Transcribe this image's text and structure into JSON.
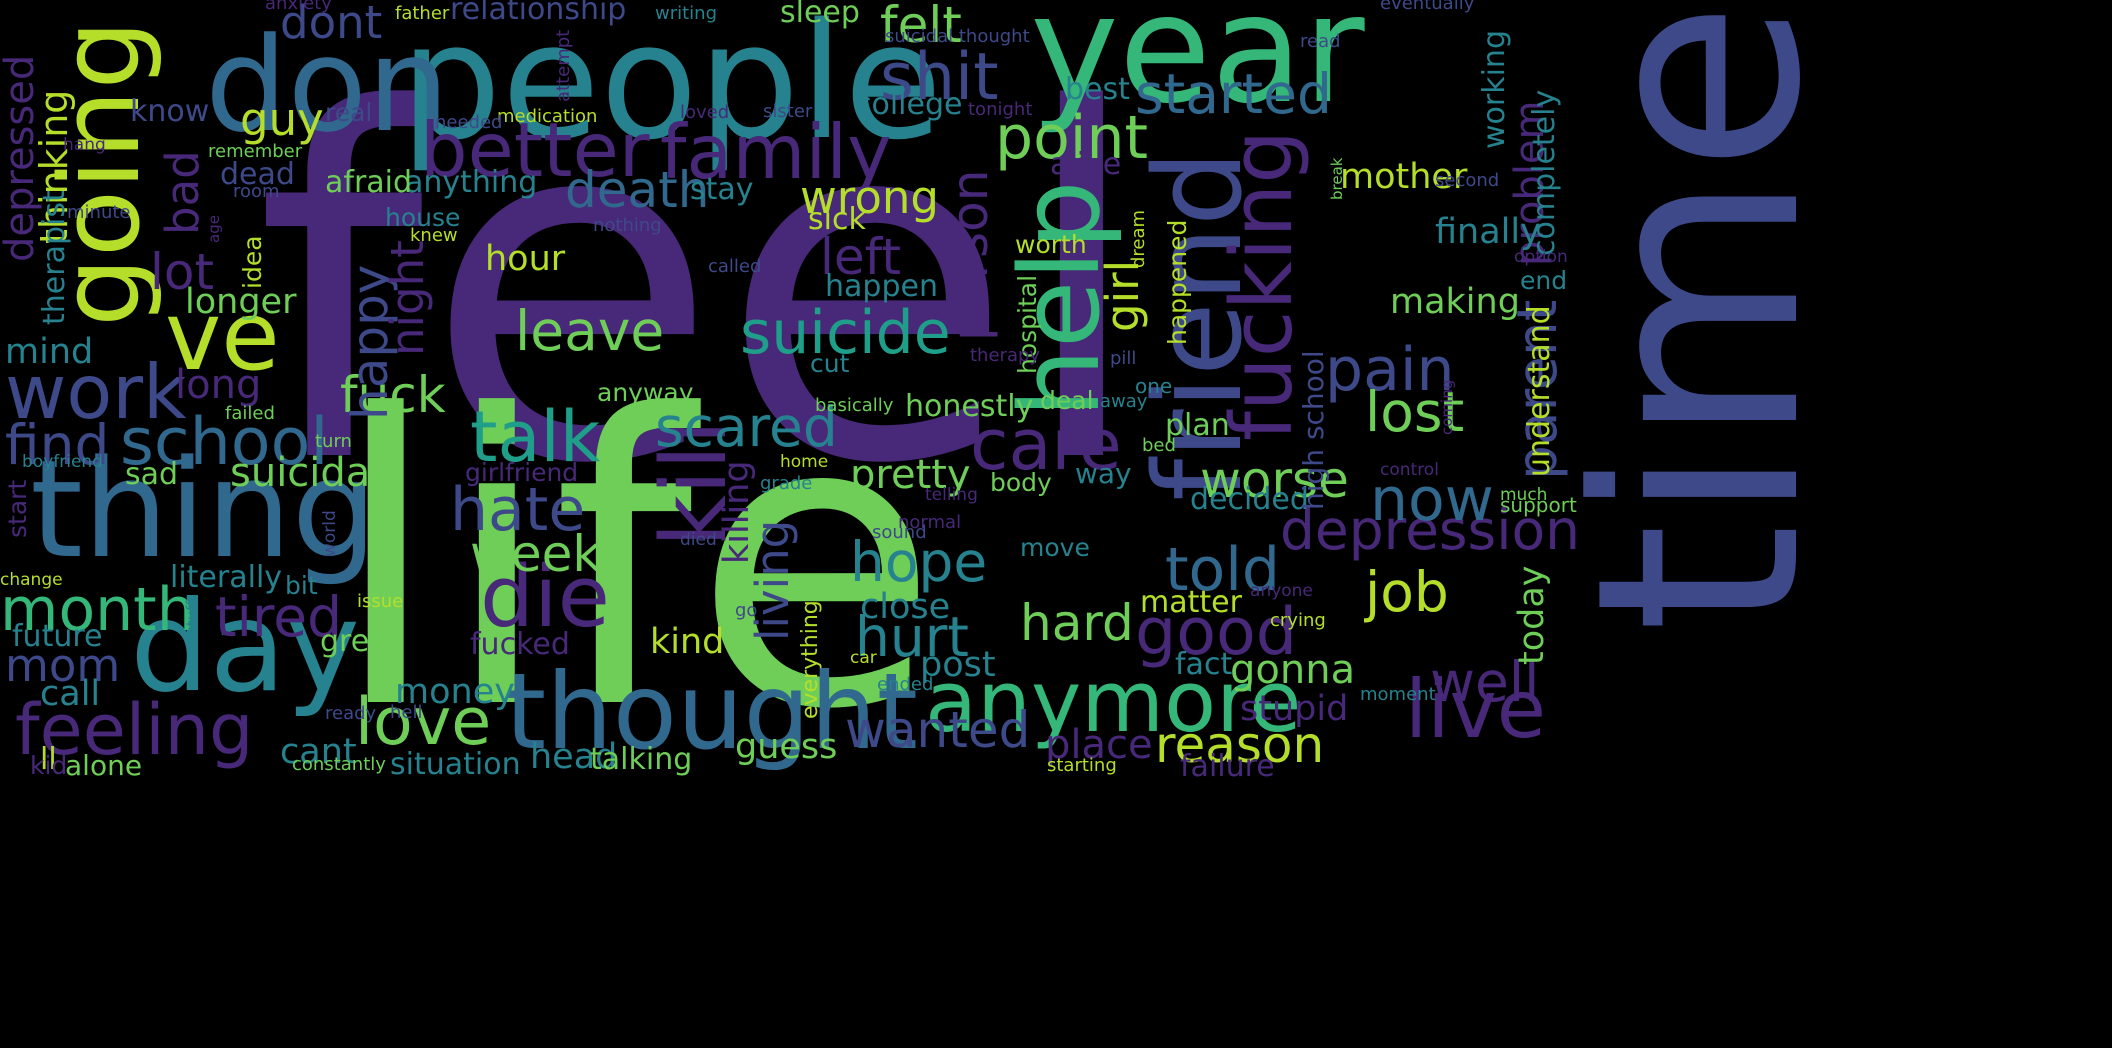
{
  "palette": {
    "background": "#000000",
    "colors": [
      "#440154",
      "#482878",
      "#3e4989",
      "#31688e",
      "#26828e",
      "#1f9e89",
      "#35b779",
      "#6ece58",
      "#b5de2b",
      "#fde725"
    ]
  },
  "words": [
    {
      "text": "feel",
      "color": "#482878"
    },
    {
      "text": "life",
      "color": "#6ece58"
    },
    {
      "text": "time",
      "color": "#3e4989"
    },
    {
      "text": "people",
      "color": "#26828e"
    },
    {
      "text": "year",
      "color": "#35b779"
    },
    {
      "text": "don",
      "color": "#31688e"
    },
    {
      "text": "thing",
      "color": "#31688e"
    },
    {
      "text": "day",
      "color": "#26828e"
    },
    {
      "text": "friend",
      "color": "#3e4989"
    },
    {
      "text": "going",
      "color": "#b5de2b"
    },
    {
      "text": "help",
      "color": "#35b779"
    },
    {
      "text": "thought",
      "color": "#31688e"
    },
    {
      "text": "ve",
      "color": "#b5de2b"
    },
    {
      "text": "fucking",
      "color": "#482878"
    },
    {
      "text": "kill",
      "color": "#482878"
    },
    {
      "text": "die",
      "color": "#482878"
    },
    {
      "text": "anymore",
      "color": "#35b779"
    },
    {
      "text": "live",
      "color": "#482878"
    },
    {
      "text": "family",
      "color": "#482878"
    },
    {
      "text": "better",
      "color": "#482878"
    },
    {
      "text": "work",
      "color": "#3e4989"
    },
    {
      "text": "feeling",
      "color": "#482878"
    },
    {
      "text": "school",
      "color": "#31688e"
    },
    {
      "text": "talk",
      "color": "#1f9e89"
    },
    {
      "text": "care",
      "color": "#482878"
    },
    {
      "text": "suicide",
      "color": "#1f9e89"
    },
    {
      "text": "depression",
      "color": "#482878"
    },
    {
      "text": "love",
      "color": "#6ece58"
    },
    {
      "text": "good",
      "color": "#482878"
    },
    {
      "text": "shit",
      "color": "#3e4989"
    },
    {
      "text": "point",
      "color": "#6ece58"
    },
    {
      "text": "pain",
      "color": "#3e4989"
    },
    {
      "text": "parent",
      "color": "#3e4989"
    },
    {
      "text": "started",
      "color": "#31688e"
    },
    {
      "text": "hate",
      "color": "#3e4989"
    },
    {
      "text": "death",
      "color": "#31688e"
    },
    {
      "text": "scared",
      "color": "#26828e"
    },
    {
      "text": "leave",
      "color": "#6ece58"
    },
    {
      "text": "told",
      "color": "#31688e"
    },
    {
      "text": "month",
      "color": "#35b779"
    },
    {
      "text": "find",
      "color": "#3e4989"
    },
    {
      "text": "week",
      "color": "#6ece58"
    },
    {
      "text": "tired",
      "color": "#482878"
    },
    {
      "text": "hurt",
      "color": "#26828e"
    },
    {
      "text": "hope",
      "color": "#26828e"
    },
    {
      "text": "job",
      "color": "#b5de2b"
    },
    {
      "text": "now",
      "color": "#31688e"
    },
    {
      "text": "lost",
      "color": "#6ece58"
    },
    {
      "text": "worse",
      "color": "#6ece58"
    },
    {
      "text": "reason",
      "color": "#b5de2b"
    },
    {
      "text": "well",
      "color": "#482878"
    },
    {
      "text": "wanted",
      "color": "#3e4989"
    },
    {
      "text": "hard",
      "color": "#6ece58"
    },
    {
      "text": "fuck",
      "color": "#6ece58"
    },
    {
      "text": "happy",
      "color": "#3e4989"
    },
    {
      "text": "person",
      "color": "#482878"
    },
    {
      "text": "night",
      "color": "#482878"
    },
    {
      "text": "wrong",
      "color": "#b5de2b"
    },
    {
      "text": "felt",
      "color": "#6ece58"
    },
    {
      "text": "dont",
      "color": "#3e4989"
    },
    {
      "text": "left",
      "color": "#482878"
    },
    {
      "text": "lot",
      "color": "#482878"
    },
    {
      "text": "bad",
      "color": "#482878"
    },
    {
      "text": "guy",
      "color": "#b5de2b"
    },
    {
      "text": "mom",
      "color": "#3e4989"
    },
    {
      "text": "dad",
      "color": "#b5de2b"
    },
    {
      "text": "suicidal",
      "color": "#6ece58"
    },
    {
      "text": "pretty",
      "color": "#6ece58"
    },
    {
      "text": "living",
      "color": "#3e4989"
    },
    {
      "text": "killing",
      "color": "#482878"
    },
    {
      "text": "girl",
      "color": "#b5de2b"
    },
    {
      "text": "problem",
      "color": "#482878"
    },
    {
      "text": "today",
      "color": "#6ece58"
    },
    {
      "text": "understand",
      "color": "#b5de2b"
    },
    {
      "text": "completely",
      "color": "#26828e"
    },
    {
      "text": "working",
      "color": "#26828e"
    },
    {
      "text": "problem_b",
      "color": "#482878"
    },
    {
      "text": "depressed",
      "color": "#482878"
    },
    {
      "text": "thinking",
      "color": "#b5de2b"
    },
    {
      "text": "therapist",
      "color": "#26828e"
    },
    {
      "text": "long",
      "color": "#482878"
    },
    {
      "text": "longer",
      "color": "#6ece58"
    },
    {
      "text": "mind",
      "color": "#26828e"
    },
    {
      "text": "sad",
      "color": "#6ece58"
    },
    {
      "text": "cant",
      "color": "#26828e"
    },
    {
      "text": "call",
      "color": "#26828e"
    },
    {
      "text": "future",
      "color": "#26828e"
    },
    {
      "text": "literally",
      "color": "#26828e"
    },
    {
      "text": "alone",
      "color": "#6ece58"
    },
    {
      "text": "ll",
      "color": "#b5de2b"
    },
    {
      "text": "kid",
      "color": "#482878"
    },
    {
      "text": "head",
      "color": "#26828e"
    },
    {
      "text": "talking",
      "color": "#6ece58"
    },
    {
      "text": "situation",
      "color": "#26828e"
    },
    {
      "text": "guess",
      "color": "#6ece58"
    },
    {
      "text": "money",
      "color": "#26828e"
    },
    {
      "text": "great",
      "color": "#6ece58"
    },
    {
      "text": "kind",
      "color": "#b5de2b"
    },
    {
      "text": "fucked",
      "color": "#482878"
    },
    {
      "text": "close",
      "color": "#26828e"
    },
    {
      "text": "post",
      "color": "#26828e"
    },
    {
      "text": "place",
      "color": "#482878"
    },
    {
      "text": "gonna",
      "color": "#6ece58"
    },
    {
      "text": "fact",
      "color": "#26828e"
    },
    {
      "text": "stupid",
      "color": "#482878"
    },
    {
      "text": "failure",
      "color": "#482878"
    },
    {
      "text": "matter",
      "color": "#b5de2b"
    },
    {
      "text": "finally",
      "color": "#26828e"
    },
    {
      "text": "making",
      "color": "#6ece58"
    },
    {
      "text": "mother",
      "color": "#b5de2b"
    },
    {
      "text": "end",
      "color": "#26828e"
    },
    {
      "text": "plan",
      "color": "#6ece58"
    },
    {
      "text": "decided",
      "color": "#26828e"
    },
    {
      "text": "honestly",
      "color": "#6ece58"
    },
    {
      "text": "hour",
      "color": "#b5de2b"
    },
    {
      "text": "happen",
      "color": "#26828e"
    },
    {
      "text": "anything",
      "color": "#26828e"
    },
    {
      "text": "afraid",
      "color": "#6ece58"
    },
    {
      "text": "college",
      "color": "#26828e"
    },
    {
      "text": "stay",
      "color": "#26828e"
    },
    {
      "text": "sick",
      "color": "#b5de2b"
    },
    {
      "text": "alive",
      "color": "#482878"
    },
    {
      "text": "best",
      "color": "#26828e"
    },
    {
      "text": "relationship",
      "color": "#3e4989"
    },
    {
      "text": "sleep",
      "color": "#6ece58"
    },
    {
      "text": "know",
      "color": "#3e4989"
    },
    {
      "text": "real",
      "color": "#3e4989"
    },
    {
      "text": "dead",
      "color": "#3e4989"
    },
    {
      "text": "idea",
      "color": "#b5de2b"
    },
    {
      "text": "house",
      "color": "#26828e"
    },
    {
      "text": "high school",
      "color": "#3e4989"
    },
    {
      "text": "hospital",
      "color": "#6ece58"
    },
    {
      "text": "happened",
      "color": "#b5de2b"
    },
    {
      "text": "worth",
      "color": "#b5de2b"
    },
    {
      "text": "cut",
      "color": "#26828e"
    },
    {
      "text": "anyway",
      "color": "#6ece58"
    },
    {
      "text": "girlfriend",
      "color": "#482878"
    },
    {
      "text": "way",
      "color": "#26828e"
    },
    {
      "text": "body",
      "color": "#6ece58"
    },
    {
      "text": "move",
      "color": "#26828e"
    },
    {
      "text": "deal",
      "color": "#6ece58"
    },
    {
      "text": "everything",
      "color": "#b5de2b"
    },
    {
      "text": "bit",
      "color": "#26828e"
    },
    {
      "text": "change",
      "color": "#b5de2b"
    },
    {
      "text": "start",
      "color": "#482878"
    },
    {
      "text": "boyfriend",
      "color": "#26828e"
    },
    {
      "text": "failed",
      "color": "#6ece58"
    },
    {
      "text": "turn",
      "color": "#6ece58"
    },
    {
      "text": "crying",
      "color": "#b5de2b"
    },
    {
      "text": "support",
      "color": "#6ece58"
    },
    {
      "text": "much",
      "color": "#6ece58"
    },
    {
      "text": "moment",
      "color": "#26828e"
    },
    {
      "text": "anxiety",
      "color": "#482878"
    },
    {
      "text": "father",
      "color": "#b5de2b"
    },
    {
      "text": "writing",
      "color": "#26828e"
    },
    {
      "text": "eventually",
      "color": "#3e4989"
    },
    {
      "text": "suicidal thought",
      "color": "#3e4989"
    },
    {
      "text": "read",
      "color": "#3e4989"
    },
    {
      "text": "attempt",
      "color": "#482878"
    },
    {
      "text": "medication",
      "color": "#b5de2b"
    },
    {
      "text": "needed",
      "color": "#3e4989"
    },
    {
      "text": "loved",
      "color": "#482878"
    },
    {
      "text": "sister",
      "color": "#3e4989"
    },
    {
      "text": "tonight",
      "color": "#482878"
    },
    {
      "text": "remember",
      "color": "#6ece58"
    },
    {
      "text": "room",
      "color": "#3e4989"
    },
    {
      "text": "minute",
      "color": "#3e4989"
    },
    {
      "text": "age",
      "color": "#482878"
    },
    {
      "text": "nothing",
      "color": "#3e4989"
    },
    {
      "text": "knew",
      "color": "#b5de2b"
    },
    {
      "text": "called",
      "color": "#3e4989"
    },
    {
      "text": "dream",
      "color": "#b5de2b"
    },
    {
      "text": "break",
      "color": "#6ece58"
    },
    {
      "text": "second",
      "color": "#3e4989"
    },
    {
      "text": "option",
      "color": "#482878"
    },
    {
      "text": "therapy",
      "color": "#482878"
    },
    {
      "text": "pill",
      "color": "#3e4989"
    },
    {
      "text": "one",
      "color": "#26828e"
    },
    {
      "text": "away",
      "color": "#26828e"
    },
    {
      "text": "basically",
      "color": "#6ece58"
    },
    {
      "text": "bed",
      "color": "#6ece58"
    },
    {
      "text": "coming",
      "color": "#482878"
    },
    {
      "text": "control",
      "color": "#482878"
    },
    {
      "text": "home",
      "color": "#b5de2b"
    },
    {
      "text": "grade",
      "color": "#26828e"
    },
    {
      "text": "telling",
      "color": "#482878"
    },
    {
      "text": "normal",
      "color": "#482878"
    },
    {
      "text": "sound",
      "color": "#3e4989"
    },
    {
      "text": "died",
      "color": "#3e4989"
    },
    {
      "text": "world",
      "color": "#3e4989"
    },
    {
      "text": "issue",
      "color": "#b5de2b"
    },
    {
      "text": "stuff",
      "color": "#26828e"
    },
    {
      "text": "go",
      "color": "#3e4989"
    },
    {
      "text": "car",
      "color": "#b5de2b"
    },
    {
      "text": "ended",
      "color": "#26828e"
    },
    {
      "text": "ready",
      "color": "#3e4989"
    },
    {
      "text": "hell",
      "color": "#3e4989"
    },
    {
      "text": "constantly",
      "color": "#6ece58"
    },
    {
      "text": "starting",
      "color": "#b5de2b"
    },
    {
      "text": "anyone",
      "color": "#482878"
    },
    {
      "text": "hang",
      "color": "#482878"
    }
  ]
}
